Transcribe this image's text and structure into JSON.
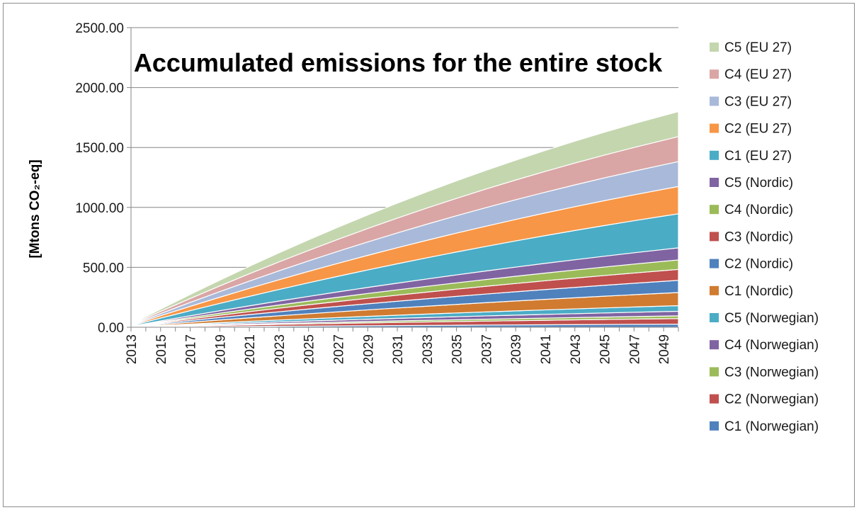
{
  "chart_data": {
    "type": "area",
    "stacked": true,
    "title": "Accumulated emissions for the entire stock",
    "xlabel": "",
    "ylabel": "[Mtons CO₂-eq]",
    "ylim": [
      0,
      2500
    ],
    "yticks": [
      "0.00",
      "500.00",
      "1000.00",
      "1500.00",
      "2000.00",
      "2500.00"
    ],
    "x": [
      2013,
      2015,
      2017,
      2019,
      2021,
      2023,
      2025,
      2027,
      2029,
      2031,
      2033,
      2035,
      2037,
      2039,
      2041,
      2043,
      2045,
      2047,
      2049,
      2050
    ],
    "xtick_labels": [
      "2013",
      "2015",
      "2017",
      "2019",
      "2021",
      "2023",
      "2025",
      "2027",
      "2029",
      "2031",
      "2033",
      "2035",
      "2037",
      "2039",
      "2041",
      "2043",
      "2045",
      "2047",
      "2049"
    ],
    "grid": true,
    "legend_position": "right",
    "series": [
      {
        "name": "C1 (Norwegian)",
        "color": "#4f81bd",
        "values": [
          0.6,
          2.2,
          3.8,
          5.4,
          7.0,
          8.5,
          10.0,
          11.4,
          12.9,
          14.3,
          15.6,
          17.0,
          18.3,
          19.6,
          20.8,
          22.0,
          23.2,
          24.4,
          25.5,
          26.0
        ]
      },
      {
        "name": "C2 (Norwegian)",
        "color": "#c0504d",
        "values": [
          0.8,
          4.0,
          7.0,
          10.0,
          12.8,
          15.6,
          18.3,
          20.9,
          23.5,
          26.0,
          28.4,
          30.8,
          33.1,
          35.3,
          37.5,
          39.6,
          41.7,
          43.7,
          45.6,
          46.6
        ]
      },
      {
        "name": "C3 (Norwegian)",
        "color": "#9bbb59",
        "values": [
          0.5,
          2.0,
          3.5,
          4.9,
          6.3,
          7.7,
          9.0,
          10.3,
          11.5,
          12.7,
          13.9,
          15.0,
          16.1,
          17.2,
          18.2,
          19.2,
          20.2,
          21.1,
          22.0,
          22.5
        ]
      },
      {
        "name": "C4 (Norwegian)",
        "color": "#8064a2",
        "values": [
          0.6,
          3.2,
          5.7,
          8.2,
          10.6,
          12.9,
          15.1,
          17.3,
          19.4,
          21.5,
          23.5,
          25.4,
          27.3,
          29.1,
          30.9,
          32.6,
          34.3,
          35.9,
          37.5,
          38.2
        ]
      },
      {
        "name": "C5 (Norwegian)",
        "color": "#4bacc6",
        "values": [
          0.5,
          3.7,
          6.8,
          9.8,
          12.7,
          15.5,
          18.3,
          21.0,
          23.6,
          26.1,
          28.6,
          31.0,
          33.3,
          35.6,
          37.8,
          39.9,
          42.0,
          44.0,
          45.9,
          46.9
        ]
      },
      {
        "name": "C1 (Nordic)",
        "color": "#d07b30",
        "values": [
          1.5,
          8.5,
          15.5,
          22.3,
          29.0,
          35.5,
          41.9,
          48.1,
          54.2,
          60.1,
          65.9,
          71.6,
          77.1,
          82.5,
          87.7,
          92.8,
          97.8,
          102.6,
          107.3,
          109.6
        ]
      },
      {
        "name": "C2 (Nordic)",
        "color": "#4f81bd",
        "values": [
          1.2,
          8.0,
          14.6,
          21.0,
          27.3,
          33.4,
          39.4,
          45.2,
          50.9,
          56.4,
          61.8,
          67.0,
          72.1,
          77.0,
          81.8,
          86.5,
          91.0,
          95.4,
          99.7,
          101.8
        ]
      },
      {
        "name": "C3 (Nordic)",
        "color": "#c0504d",
        "values": [
          1.0,
          7.2,
          13.2,
          19.0,
          24.7,
          30.2,
          35.6,
          40.8,
          45.9,
          50.8,
          55.6,
          60.3,
          64.8,
          69.2,
          73.5,
          77.6,
          81.6,
          85.5,
          89.3,
          91.1
        ]
      },
      {
        "name": "C4 (Nordic)",
        "color": "#9bbb59",
        "values": [
          0.8,
          6.2,
          11.4,
          16.5,
          21.4,
          26.2,
          30.9,
          35.5,
          39.9,
          44.2,
          48.4,
          52.5,
          56.4,
          60.2,
          63.9,
          67.5,
          71.0,
          74.4,
          77.7,
          79.3
        ]
      },
      {
        "name": "C5 (Nordic)",
        "color": "#8064a2",
        "values": [
          1.0,
          7.8,
          14.4,
          20.8,
          27.1,
          33.2,
          39.1,
          44.9,
          50.5,
          56.0,
          61.3,
          66.5,
          71.5,
          76.4,
          81.1,
          85.7,
          90.2,
          94.5,
          98.7,
          100.7
        ]
      },
      {
        "name": "C1 (EU 27)",
        "color": "#4bacc6",
        "values": [
          4.0,
          23.5,
          42.5,
          61.0,
          79.0,
          96.5,
          113.5,
          130.0,
          146.0,
          161.5,
          176.5,
          191.0,
          205.0,
          218.5,
          231.5,
          244.0,
          256.0,
          267.5,
          278.5,
          284.0
        ]
      },
      {
        "name": "C2 (EU 27)",
        "color": "#f79646",
        "values": [
          3.5,
          20.0,
          36.0,
          51.5,
          66.5,
          81.0,
          95.0,
          108.5,
          121.5,
          134.0,
          146.0,
          157.5,
          168.5,
          179.0,
          189.0,
          198.5,
          207.5,
          216.0,
          224.0,
          228.0
        ]
      },
      {
        "name": "C3 (EU 27)",
        "color": "#a9b9d9",
        "values": [
          3.0,
          18.0,
          32.7,
          47.0,
          61.0,
          74.5,
          87.5,
          100.0,
          112.0,
          123.5,
          134.5,
          145.0,
          155.0,
          164.5,
          173.5,
          182.0,
          190.0,
          197.5,
          204.5,
          208.0
        ]
      },
      {
        "name": "C4 (EU 27)",
        "color": "#d9a6a5",
        "values": [
          3.0,
          18.0,
          32.7,
          47.0,
          61.0,
          74.5,
          87.5,
          100.0,
          112.0,
          123.5,
          134.5,
          145.0,
          155.0,
          164.5,
          173.5,
          182.0,
          190.0,
          197.5,
          204.5,
          208.0
        ]
      },
      {
        "name": "C5 (EU 27)",
        "color": "#c4d6ae",
        "values": [
          3.0,
          18.5,
          33.5,
          48.0,
          62.0,
          75.5,
          88.5,
          101.0,
          113.0,
          124.5,
          135.5,
          146.0,
          156.0,
          165.5,
          174.5,
          183.0,
          191.0,
          198.5,
          205.5,
          209.0
        ]
      }
    ]
  }
}
